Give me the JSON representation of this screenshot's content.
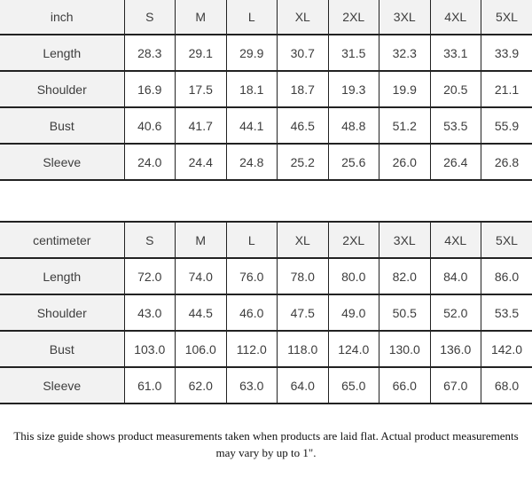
{
  "chart_data": [
    {
      "type": "table",
      "unit": "inch",
      "columns": [
        "inch",
        "S",
        "M",
        "L",
        "XL",
        "2XL",
        "3XL",
        "4XL",
        "5XL"
      ],
      "rows": [
        [
          "Length",
          "28.3",
          "29.1",
          "29.9",
          "30.7",
          "31.5",
          "32.3",
          "33.1",
          "33.9"
        ],
        [
          "Shoulder",
          "16.9",
          "17.5",
          "18.1",
          "18.7",
          "19.3",
          "19.9",
          "20.5",
          "21.1"
        ],
        [
          "Bust",
          "40.6",
          "41.7",
          "44.1",
          "46.5",
          "48.8",
          "51.2",
          "53.5",
          "55.9"
        ],
        [
          "Sleeve",
          "24.0",
          "24.4",
          "24.8",
          "25.2",
          "25.6",
          "26.0",
          "26.4",
          "26.8"
        ]
      ]
    },
    {
      "type": "table",
      "unit": "centimeter",
      "columns": [
        "centimeter",
        "S",
        "M",
        "L",
        "XL",
        "2XL",
        "3XL",
        "4XL",
        "5XL"
      ],
      "rows": [
        [
          "Length",
          "72.0",
          "74.0",
          "76.0",
          "78.0",
          "80.0",
          "82.0",
          "84.0",
          "86.0"
        ],
        [
          "Shoulder",
          "43.0",
          "44.5",
          "46.0",
          "47.5",
          "49.0",
          "50.5",
          "52.0",
          "53.5"
        ],
        [
          "Bust",
          "103.0",
          "106.0",
          "112.0",
          "118.0",
          "124.0",
          "130.0",
          "136.0",
          "142.0"
        ],
        [
          "Sleeve",
          "61.0",
          "62.0",
          "63.0",
          "64.0",
          "65.0",
          "66.0",
          "67.0",
          "68.0"
        ]
      ]
    }
  ],
  "footer": {
    "lines": [
      "This size guide shows product measurements taken when products are laid flat. Actual product measurements",
      "may vary by up to 1\"."
    ]
  },
  "colors": {
    "header_bg": "#f2f2f2",
    "cell_bg": "#ffffff",
    "border": "#222222",
    "table_text": "#3d3d3d",
    "note_text": "#111111"
  }
}
